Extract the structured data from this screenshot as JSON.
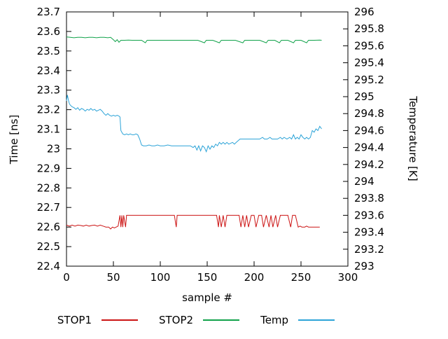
{
  "chart_data": {
    "type": "line",
    "title": "",
    "xlabel": "sample #",
    "grid": false,
    "legend_position": "bottom-center",
    "background": "#ffffff",
    "x_axis": {
      "min": 0,
      "max": 300,
      "ticks": [
        0,
        50,
        100,
        150,
        200,
        250,
        300
      ],
      "tick_labels": [
        "0",
        "50",
        "100",
        "150",
        "200",
        "250",
        "300"
      ]
    },
    "y_left": {
      "label": "Time [ns]",
      "min": 22.4,
      "max": 23.7,
      "ticks": [
        22.4,
        22.5,
        22.6,
        22.7,
        22.8,
        22.9,
        23,
        23.1,
        23.2,
        23.3,
        23.4,
        23.5,
        23.6,
        23.7
      ],
      "tick_labels": [
        "22.4",
        "22.5",
        "22.6",
        "22.7",
        "22.8",
        "22.9",
        "23",
        "23.1",
        "23.2",
        "23.3",
        "23.4",
        "23.5",
        "23.6",
        "23.7"
      ]
    },
    "y_right": {
      "label": "Temperature [K]",
      "min": 293,
      "max": 296,
      "ticks": [
        293,
        293.2,
        293.4,
        293.6,
        293.8,
        294,
        294.2,
        294.4,
        294.6,
        294.8,
        295,
        295.2,
        295.4,
        295.6,
        295.8,
        296
      ],
      "tick_labels": [
        "293",
        "293.2",
        "293.4",
        "293.6",
        "293.8",
        "294",
        "294.2",
        "294.4",
        "294.6",
        "294.8",
        "295",
        "295.2",
        "295.4",
        "295.6",
        "295.8",
        "296"
      ]
    },
    "series": [
      {
        "name": "STOP1",
        "axis": "left",
        "color": "#cc1414",
        "points": [
          [
            0,
            22.61
          ],
          [
            3,
            22.605
          ],
          [
            6,
            22.61
          ],
          [
            9,
            22.605
          ],
          [
            12,
            22.61
          ],
          [
            15,
            22.608
          ],
          [
            18,
            22.605
          ],
          [
            21,
            22.61
          ],
          [
            24,
            22.605
          ],
          [
            27,
            22.608
          ],
          [
            30,
            22.61
          ],
          [
            33,
            22.605
          ],
          [
            36,
            22.61
          ],
          [
            39,
            22.605
          ],
          [
            42,
            22.6
          ],
          [
            45,
            22.6
          ],
          [
            47,
            22.59
          ],
          [
            49,
            22.6
          ],
          [
            51,
            22.595
          ],
          [
            53,
            22.6
          ],
          [
            55,
            22.605
          ],
          [
            57,
            22.66
          ],
          [
            58,
            22.6
          ],
          [
            59,
            22.66
          ],
          [
            60,
            22.6
          ],
          [
            61,
            22.66
          ],
          [
            63,
            22.6
          ],
          [
            64,
            22.66
          ],
          [
            68,
            22.66
          ],
          [
            72,
            22.66
          ],
          [
            76,
            22.66
          ],
          [
            80,
            22.66
          ],
          [
            85,
            22.66
          ],
          [
            90,
            22.66
          ],
          [
            95,
            22.66
          ],
          [
            100,
            22.66
          ],
          [
            105,
            22.66
          ],
          [
            110,
            22.66
          ],
          [
            115,
            22.66
          ],
          [
            117,
            22.6
          ],
          [
            118,
            22.66
          ],
          [
            122,
            22.66
          ],
          [
            127,
            22.66
          ],
          [
            132,
            22.66
          ],
          [
            137,
            22.66
          ],
          [
            142,
            22.66
          ],
          [
            147,
            22.66
          ],
          [
            152,
            22.66
          ],
          [
            157,
            22.66
          ],
          [
            160,
            22.66
          ],
          [
            162,
            22.6
          ],
          [
            163,
            22.66
          ],
          [
            165,
            22.6
          ],
          [
            167,
            22.66
          ],
          [
            169,
            22.6
          ],
          [
            171,
            22.66
          ],
          [
            175,
            22.66
          ],
          [
            180,
            22.66
          ],
          [
            184,
            22.66
          ],
          [
            186,
            22.6
          ],
          [
            188,
            22.66
          ],
          [
            190,
            22.6
          ],
          [
            192,
            22.66
          ],
          [
            194,
            22.6
          ],
          [
            197,
            22.66
          ],
          [
            200,
            22.66
          ],
          [
            202,
            22.6
          ],
          [
            205,
            22.66
          ],
          [
            208,
            22.66
          ],
          [
            210,
            22.6
          ],
          [
            213,
            22.66
          ],
          [
            216,
            22.6
          ],
          [
            218,
            22.66
          ],
          [
            220,
            22.6
          ],
          [
            223,
            22.66
          ],
          [
            225,
            22.6
          ],
          [
            228,
            22.66
          ],
          [
            232,
            22.66
          ],
          [
            236,
            22.66
          ],
          [
            239,
            22.6
          ],
          [
            241,
            22.66
          ],
          [
            244,
            22.66
          ],
          [
            247,
            22.6
          ],
          [
            249,
            22.605
          ],
          [
            251,
            22.6
          ],
          [
            254,
            22.6
          ],
          [
            256,
            22.605
          ],
          [
            258,
            22.6
          ],
          [
            261,
            22.6
          ],
          [
            264,
            22.6
          ],
          [
            267,
            22.6
          ],
          [
            270,
            22.6
          ]
        ]
      },
      {
        "name": "STOP2",
        "axis": "left",
        "color": "#11a24a",
        "points": [
          [
            0,
            23.572
          ],
          [
            4,
            23.57
          ],
          [
            8,
            23.568
          ],
          [
            12,
            23.57
          ],
          [
            16,
            23.57
          ],
          [
            20,
            23.568
          ],
          [
            24,
            23.57
          ],
          [
            28,
            23.57
          ],
          [
            32,
            23.568
          ],
          [
            36,
            23.57
          ],
          [
            40,
            23.57
          ],
          [
            44,
            23.568
          ],
          [
            47,
            23.57
          ],
          [
            50,
            23.558
          ],
          [
            52,
            23.548
          ],
          [
            54,
            23.558
          ],
          [
            56,
            23.545
          ],
          [
            58,
            23.555
          ],
          [
            62,
            23.555
          ],
          [
            66,
            23.556
          ],
          [
            70,
            23.555
          ],
          [
            75,
            23.555
          ],
          [
            80,
            23.555
          ],
          [
            84,
            23.542
          ],
          [
            86,
            23.555
          ],
          [
            92,
            23.555
          ],
          [
            100,
            23.555
          ],
          [
            108,
            23.555
          ],
          [
            116,
            23.555
          ],
          [
            124,
            23.555
          ],
          [
            132,
            23.555
          ],
          [
            140,
            23.555
          ],
          [
            147,
            23.542
          ],
          [
            149,
            23.555
          ],
          [
            156,
            23.555
          ],
          [
            163,
            23.542
          ],
          [
            165,
            23.555
          ],
          [
            172,
            23.555
          ],
          [
            180,
            23.555
          ],
          [
            188,
            23.542
          ],
          [
            190,
            23.555
          ],
          [
            198,
            23.555
          ],
          [
            206,
            23.555
          ],
          [
            213,
            23.542
          ],
          [
            215,
            23.555
          ],
          [
            222,
            23.555
          ],
          [
            227,
            23.542
          ],
          [
            229,
            23.555
          ],
          [
            236,
            23.555
          ],
          [
            242,
            23.542
          ],
          [
            244,
            23.555
          ],
          [
            250,
            23.555
          ],
          [
            256,
            23.542
          ],
          [
            258,
            23.555
          ],
          [
            264,
            23.555
          ],
          [
            270,
            23.556
          ],
          [
            272,
            23.555
          ]
        ]
      },
      {
        "name": "Temp",
        "axis": "right",
        "color": "#2da4d8",
        "points": [
          [
            0,
            294.95
          ],
          [
            1,
            295.02
          ],
          [
            2,
            294.96
          ],
          [
            3,
            294.92
          ],
          [
            4,
            294.9
          ],
          [
            6,
            294.88
          ],
          [
            8,
            294.87
          ],
          [
            10,
            294.85
          ],
          [
            12,
            294.87
          ],
          [
            14,
            294.84
          ],
          [
            16,
            294.86
          ],
          [
            18,
            294.85
          ],
          [
            20,
            294.83
          ],
          [
            22,
            294.85
          ],
          [
            24,
            294.84
          ],
          [
            26,
            294.86
          ],
          [
            28,
            294.84
          ],
          [
            30,
            294.85
          ],
          [
            32,
            294.83
          ],
          [
            34,
            294.84
          ],
          [
            36,
            294.85
          ],
          [
            38,
            294.83
          ],
          [
            40,
            294.8
          ],
          [
            42,
            294.78
          ],
          [
            44,
            294.8
          ],
          [
            46,
            294.78
          ],
          [
            48,
            294.77
          ],
          [
            50,
            294.78
          ],
          [
            52,
            294.77
          ],
          [
            54,
            294.78
          ],
          [
            56,
            294.77
          ],
          [
            57,
            294.76
          ],
          [
            58,
            294.6
          ],
          [
            60,
            294.56
          ],
          [
            62,
            294.55
          ],
          [
            64,
            294.56
          ],
          [
            66,
            294.55
          ],
          [
            68,
            294.56
          ],
          [
            70,
            294.55
          ],
          [
            72,
            294.55
          ],
          [
            74,
            294.56
          ],
          [
            76,
            294.55
          ],
          [
            78,
            294.5
          ],
          [
            80,
            294.43
          ],
          [
            82,
            294.42
          ],
          [
            85,
            294.42
          ],
          [
            88,
            294.43
          ],
          [
            91,
            294.42
          ],
          [
            94,
            294.42
          ],
          [
            97,
            294.43
          ],
          [
            100,
            294.42
          ],
          [
            104,
            294.42
          ],
          [
            108,
            294.43
          ],
          [
            112,
            294.42
          ],
          [
            116,
            294.42
          ],
          [
            120,
            294.42
          ],
          [
            124,
            294.42
          ],
          [
            128,
            294.42
          ],
          [
            132,
            294.42
          ],
          [
            135,
            294.4
          ],
          [
            137,
            294.42
          ],
          [
            139,
            294.37
          ],
          [
            141,
            294.42
          ],
          [
            143,
            294.36
          ],
          [
            145,
            294.42
          ],
          [
            147,
            294.4
          ],
          [
            149,
            294.35
          ],
          [
            151,
            294.42
          ],
          [
            153,
            294.38
          ],
          [
            155,
            294.42
          ],
          [
            157,
            294.4
          ],
          [
            159,
            294.44
          ],
          [
            161,
            294.42
          ],
          [
            163,
            294.46
          ],
          [
            165,
            294.44
          ],
          [
            167,
            294.46
          ],
          [
            169,
            294.44
          ],
          [
            171,
            294.46
          ],
          [
            173,
            294.44
          ],
          [
            175,
            294.45
          ],
          [
            177,
            294.46
          ],
          [
            179,
            294.44
          ],
          [
            181,
            294.46
          ],
          [
            183,
            294.48
          ],
          [
            185,
            294.5
          ],
          [
            188,
            294.5
          ],
          [
            191,
            294.5
          ],
          [
            194,
            294.5
          ],
          [
            197,
            294.5
          ],
          [
            200,
            294.5
          ],
          [
            203,
            294.5
          ],
          [
            206,
            294.5
          ],
          [
            209,
            294.52
          ],
          [
            211,
            294.5
          ],
          [
            214,
            294.5
          ],
          [
            217,
            294.52
          ],
          [
            219,
            294.5
          ],
          [
            222,
            294.5
          ],
          [
            225,
            294.5
          ],
          [
            228,
            294.52
          ],
          [
            230,
            294.5
          ],
          [
            232,
            294.52
          ],
          [
            235,
            294.5
          ],
          [
            238,
            294.52
          ],
          [
            240,
            294.5
          ],
          [
            242,
            294.55
          ],
          [
            244,
            294.5
          ],
          [
            246,
            294.52
          ],
          [
            248,
            294.5
          ],
          [
            250,
            294.55
          ],
          [
            252,
            294.52
          ],
          [
            254,
            294.5
          ],
          [
            256,
            294.52
          ],
          [
            258,
            294.5
          ],
          [
            260,
            294.52
          ],
          [
            262,
            294.6
          ],
          [
            264,
            294.58
          ],
          [
            266,
            294.62
          ],
          [
            268,
            294.6
          ],
          [
            270,
            294.65
          ],
          [
            272,
            294.62
          ]
        ]
      }
    ]
  }
}
